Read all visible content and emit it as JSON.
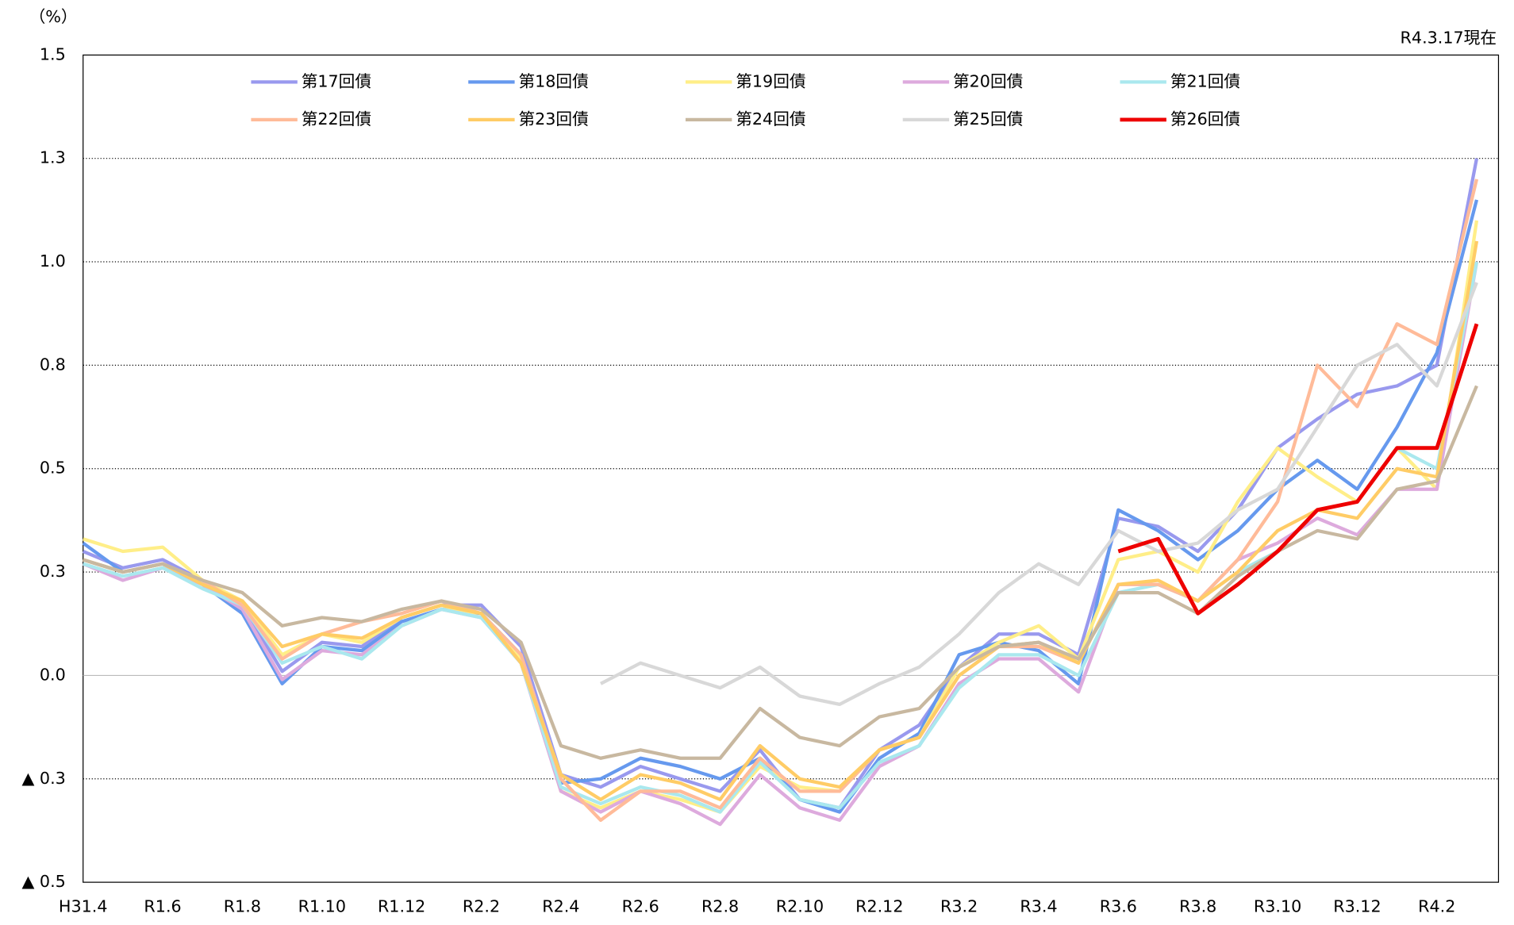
{
  "chart_data": {
    "type": "line",
    "unit_label": "（%）",
    "annotation": "R4.3.17現在",
    "categories": [
      "H31.4",
      null,
      "R1.6",
      null,
      "R1.8",
      null,
      "R1.10",
      null,
      "R1.12",
      null,
      "R2.2",
      null,
      "R2.4",
      null,
      "R2.6",
      null,
      "R2.8",
      null,
      "R2.10",
      null,
      "R2.12",
      null,
      "R3.2",
      null,
      "R3.4",
      null,
      "R3.6",
      null,
      "R3.8",
      null,
      "R3.10",
      null,
      "R3.12",
      null,
      "R4.2",
      null
    ],
    "ylim": [
      -0.5,
      1.5
    ],
    "yticks": [
      {
        "value": -0.5,
        "label": "▲ 0.5"
      },
      {
        "value": -0.25,
        "label": "▲ 0.3"
      },
      {
        "value": 0,
        "label": "0.0"
      },
      {
        "value": 0.25,
        "label": "0.3"
      },
      0.5,
      {
        "value": 0.75,
        "label": "0.8"
      },
      {
        "value": 1.0,
        "label": "1.0"
      },
      {
        "value": 1.25,
        "label": "1.3"
      },
      1.5
    ],
    "grid": true,
    "series": [
      {
        "name": "第17回債",
        "color": "#9999ee",
        "values": [
          0.3,
          0.26,
          0.28,
          0.23,
          0.17,
          0.01,
          0.08,
          0.07,
          0.14,
          0.17,
          0.17,
          0.07,
          -0.24,
          -0.27,
          -0.22,
          -0.25,
          -0.28,
          -0.18,
          -0.3,
          -0.32,
          -0.18,
          -0.12,
          0.02,
          0.1,
          0.1,
          0.05,
          0.38,
          0.36,
          0.3,
          0.4,
          0.55,
          0.62,
          0.68,
          0.7,
          0.75,
          1.25
        ]
      },
      {
        "name": "第18回債",
        "color": "#6699ee",
        "values": [
          0.32,
          0.25,
          0.27,
          0.22,
          0.15,
          -0.02,
          0.07,
          0.06,
          0.13,
          0.16,
          0.15,
          0.05,
          -0.26,
          -0.25,
          -0.2,
          -0.22,
          -0.25,
          -0.2,
          -0.3,
          -0.33,
          -0.2,
          -0.14,
          0.05,
          0.08,
          0.06,
          -0.02,
          0.4,
          0.35,
          0.28,
          0.35,
          0.45,
          0.52,
          0.45,
          0.6,
          0.78,
          1.15
        ]
      },
      {
        "name": "第19回債",
        "color": "#ffee88",
        "values": [
          0.33,
          0.3,
          0.31,
          0.23,
          0.18,
          0.05,
          0.1,
          0.08,
          0.14,
          0.17,
          0.14,
          0.04,
          -0.28,
          -0.32,
          -0.28,
          -0.3,
          -0.33,
          -0.22,
          -0.27,
          -0.28,
          -0.18,
          -0.15,
          0.02,
          0.08,
          0.12,
          0.04,
          0.28,
          0.3,
          0.25,
          0.42,
          0.55,
          0.48,
          0.42,
          0.55,
          0.45,
          1.1
        ]
      },
      {
        "name": "第20回債",
        "color": "#ddaadd",
        "values": [
          0.27,
          0.23,
          0.26,
          0.22,
          0.16,
          -0.01,
          0.06,
          0.05,
          0.12,
          0.16,
          0.14,
          0.03,
          -0.28,
          -0.33,
          -0.28,
          -0.31,
          -0.36,
          -0.24,
          -0.32,
          -0.35,
          -0.22,
          -0.17,
          -0.02,
          0.04,
          0.04,
          -0.04,
          0.22,
          0.22,
          0.18,
          0.28,
          0.32,
          0.38,
          0.34,
          0.45,
          0.45,
          1.0
        ]
      },
      {
        "name": "第21回債",
        "color": "#aae8ee",
        "values": [
          0.27,
          0.24,
          0.26,
          0.21,
          0.17,
          0.03,
          0.07,
          0.04,
          0.12,
          0.16,
          0.14,
          0.03,
          -0.27,
          -0.31,
          -0.27,
          -0.29,
          -0.33,
          -0.21,
          -0.3,
          -0.32,
          -0.21,
          -0.17,
          -0.03,
          0.05,
          0.05,
          0.0,
          0.2,
          0.22,
          0.18,
          0.25,
          0.3,
          0.4,
          0.42,
          0.55,
          0.5,
          1.0
        ]
      },
      {
        "name": "第22回債",
        "color": "#ffbb99",
        "values": [
          0.28,
          0.25,
          0.27,
          0.23,
          0.17,
          0.04,
          0.1,
          0.13,
          0.15,
          0.18,
          0.15,
          0.05,
          -0.25,
          -0.35,
          -0.28,
          -0.28,
          -0.32,
          -0.2,
          -0.28,
          -0.28,
          -0.18,
          -0.15,
          0.0,
          0.07,
          0.07,
          0.03,
          0.22,
          0.22,
          0.18,
          0.28,
          0.42,
          0.75,
          0.65,
          0.85,
          0.8,
          1.2
        ]
      },
      {
        "name": "第23回債",
        "color": "#ffcc66",
        "values": [
          0.28,
          0.25,
          0.27,
          0.22,
          0.18,
          0.07,
          0.1,
          0.09,
          0.14,
          0.17,
          0.15,
          0.03,
          -0.24,
          -0.3,
          -0.24,
          -0.26,
          -0.3,
          -0.17,
          -0.25,
          -0.27,
          -0.18,
          -0.15,
          0.0,
          0.07,
          0.08,
          0.03,
          0.22,
          0.23,
          0.18,
          0.25,
          0.35,
          0.4,
          0.38,
          0.5,
          0.48,
          1.05
        ]
      },
      {
        "name": "第24回債",
        "color": "#c8b8a0",
        "values": [
          0.28,
          0.25,
          0.27,
          0.23,
          0.2,
          0.12,
          0.14,
          0.13,
          0.16,
          0.18,
          0.16,
          0.08,
          -0.17,
          -0.2,
          -0.18,
          -0.2,
          -0.2,
          -0.08,
          -0.15,
          -0.17,
          -0.1,
          -0.08,
          0.02,
          0.07,
          0.08,
          0.04,
          0.2,
          0.2,
          0.15,
          0.24,
          0.3,
          0.35,
          0.33,
          0.45,
          0.47,
          0.7
        ]
      },
      {
        "name": "第25回債",
        "color": "#d8d8d8",
        "values": [
          null,
          null,
          null,
          null,
          null,
          null,
          null,
          null,
          null,
          null,
          null,
          null,
          null,
          -0.02,
          0.03,
          0.0,
          -0.03,
          0.02,
          -0.05,
          -0.07,
          -0.02,
          0.02,
          0.1,
          0.2,
          0.27,
          0.22,
          0.35,
          0.3,
          0.32,
          0.4,
          0.45,
          0.6,
          0.75,
          0.8,
          0.7,
          0.95
        ]
      },
      {
        "name": "第26回債",
        "color": "#ee0000",
        "values": [
          null,
          null,
          null,
          null,
          null,
          null,
          null,
          null,
          null,
          null,
          null,
          null,
          null,
          null,
          null,
          null,
          null,
          null,
          null,
          null,
          null,
          null,
          null,
          null,
          null,
          null,
          0.3,
          0.33,
          0.15,
          0.22,
          0.3,
          0.4,
          0.42,
          0.55,
          0.55,
          0.85
        ]
      }
    ]
  }
}
